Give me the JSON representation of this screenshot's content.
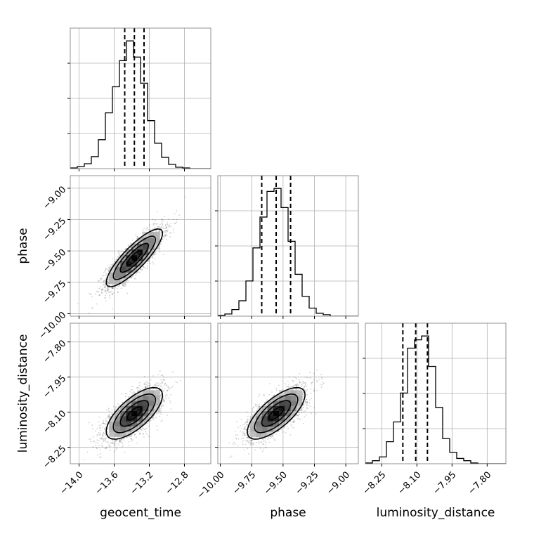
{
  "chart_data": {
    "type": "corner",
    "parameters": [
      "geocent_time",
      "phase",
      "luminosity_distance"
    ],
    "grid": true,
    "ranges": {
      "geocent_time": [
        -14.1,
        -12.5
      ],
      "phase": [
        -10.02,
        -8.9
      ],
      "luminosity_distance": [
        -8.32,
        -7.72
      ]
    },
    "ticks": {
      "geocent_time": {
        "values": [
          -14.0,
          -13.6,
          -13.2,
          -12.8
        ],
        "labels": [
          "−14.0",
          "−13.6",
          "−13.2",
          "−12.8"
        ]
      },
      "phase": {
        "values": [
          -10.0,
          -9.75,
          -9.5,
          -9.25,
          -9.0
        ],
        "labels": [
          "−10.00",
          "−9.75",
          "−9.50",
          "−9.25",
          "−9.00"
        ]
      },
      "luminosity_distance": {
        "values": [
          -8.25,
          -8.1,
          -7.95,
          -7.8
        ],
        "labels": [
          "−8.25",
          "−8.10",
          "−7.95",
          "−7.80"
        ]
      }
    },
    "histograms": [
      {
        "parameter": "geocent_time",
        "bin_edges": [
          -14.1,
          -14.02,
          -13.94,
          -13.86,
          -13.78,
          -13.7,
          -13.62,
          -13.54,
          -13.46,
          -13.38,
          -13.3,
          -13.22,
          -13.14,
          -13.06,
          -12.98,
          -12.9,
          -12.82,
          -12.74,
          -12.66,
          -12.58,
          -12.5
        ],
        "counts": [
          1,
          3,
          7,
          17,
          41,
          79,
          116,
          153,
          181,
          158,
          121,
          68,
          36,
          16,
          6,
          2,
          1,
          0,
          0,
          0
        ],
        "quantiles": [
          -13.48,
          -13.37,
          -13.26
        ]
      },
      {
        "parameter": "phase",
        "bin_edges": [
          -10.02,
          -9.964,
          -9.908,
          -9.852,
          -9.796,
          -9.74,
          -9.684,
          -9.628,
          -9.572,
          -9.516,
          -9.46,
          -9.404,
          -9.348,
          -9.292,
          -9.236,
          -9.18,
          -9.124,
          -9.068,
          -9.012,
          -8.956,
          -8.9
        ],
        "counts": [
          1,
          3,
          9,
          21,
          48,
          93,
          135,
          170,
          174,
          148,
          102,
          57,
          27,
          11,
          4,
          2,
          0,
          0,
          0,
          0
        ],
        "quantiles": [
          -9.67,
          -9.555,
          -9.44
        ]
      },
      {
        "parameter": "luminosity_distance",
        "bin_edges": [
          -8.32,
          -8.29,
          -8.26,
          -8.23,
          -8.2,
          -8.17,
          -8.14,
          -8.11,
          -8.08,
          -8.05,
          -8.02,
          -7.99,
          -7.96,
          -7.93,
          -7.9,
          -7.87,
          -7.84,
          -7.81,
          -7.78,
          -7.75,
          -7.72
        ],
        "counts": [
          1,
          4,
          9,
          29,
          55,
          93,
          152,
          163,
          168,
          128,
          74,
          33,
          15,
          7,
          4,
          1,
          0,
          0,
          0,
          0
        ],
        "quantiles": [
          -8.16,
          -8.105,
          -8.055
        ]
      }
    ],
    "pairs": [
      {
        "x": "geocent_time",
        "y": "phase",
        "center": [
          -13.37,
          -9.555
        ],
        "sd": [
          0.16,
          0.115
        ],
        "rho": 0.85
      },
      {
        "x": "geocent_time",
        "y": "luminosity_distance",
        "center": [
          -13.37,
          -8.105
        ],
        "sd": [
          0.16,
          0.055
        ],
        "rho": 0.7
      },
      {
        "x": "phase",
        "y": "luminosity_distance",
        "center": [
          -9.555,
          -8.105
        ],
        "sd": [
          0.115,
          0.055
        ],
        "rho": 0.72
      }
    ],
    "contour_levels_sigma": [
      0.5,
      1.0,
      1.5,
      2.0
    ],
    "xlabel": [
      "geocent_time",
      "phase",
      "luminosity_distance"
    ],
    "ylabel": [
      "phase",
      "luminosity_distance"
    ]
  }
}
